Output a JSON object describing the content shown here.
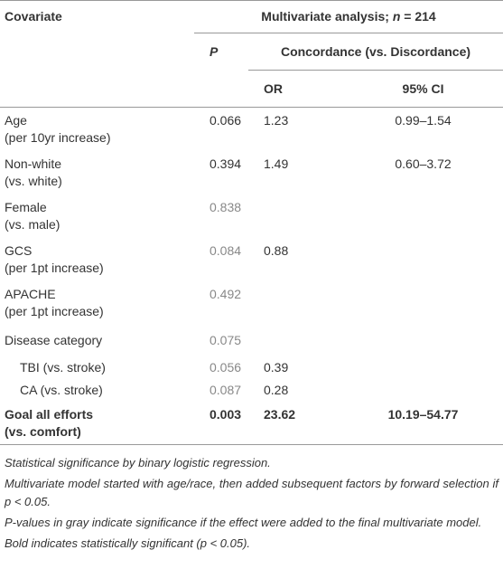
{
  "header": {
    "covariate": "Covariate",
    "analysis": [
      "Multivariate analysis; ",
      "n",
      " = 214"
    ],
    "p": "P",
    "concordance": "Concordance (vs. Discordance)",
    "or": "OR",
    "ci": "95% CI"
  },
  "rows": [
    {
      "covariate": "Age",
      "detail": "(per 10yr increase)",
      "p": "0.066",
      "or": "1.23",
      "ci": "0.99–1.54"
    },
    {
      "covariate": "Non-white",
      "detail": "(vs. white)",
      "p": "0.394",
      "or": "1.49",
      "ci": "0.60–3.72"
    },
    {
      "covariate": "Female",
      "detail": "(vs. male)",
      "p": "0.838",
      "p_gray": true
    },
    {
      "covariate": "GCS",
      "detail": "(per 1pt increase)",
      "p": "0.084",
      "p_gray": true,
      "or": "0.88"
    },
    {
      "covariate": "APACHE",
      "detail": "(per 1pt increase)",
      "p": "0.492",
      "p_gray": true
    },
    {
      "covariate": "Disease category",
      "p": "0.075",
      "p_gray": true
    },
    {
      "covariate": "TBI (vs. stroke)",
      "indent": true,
      "p": "0.056",
      "p_gray": true,
      "or": "0.39"
    },
    {
      "covariate": "CA (vs. stroke)",
      "indent": true,
      "p": "0.087",
      "p_gray": true,
      "or": "0.28"
    },
    {
      "covariate": "Goal all efforts",
      "detail": "(vs. comfort)",
      "bold": true,
      "p": "0.003",
      "or": "23.62",
      "ci": "10.19–54.77"
    }
  ],
  "footnotes": [
    "Statistical significance by binary logistic regression.",
    "Multivariate model started with age/race, then added subsequent factors by forward selection if p < 0.05.",
    "P-values in gray indicate significance if the effect were added to the final multivariate model.",
    "Bold indicates statistically significant (p < 0.05)."
  ]
}
